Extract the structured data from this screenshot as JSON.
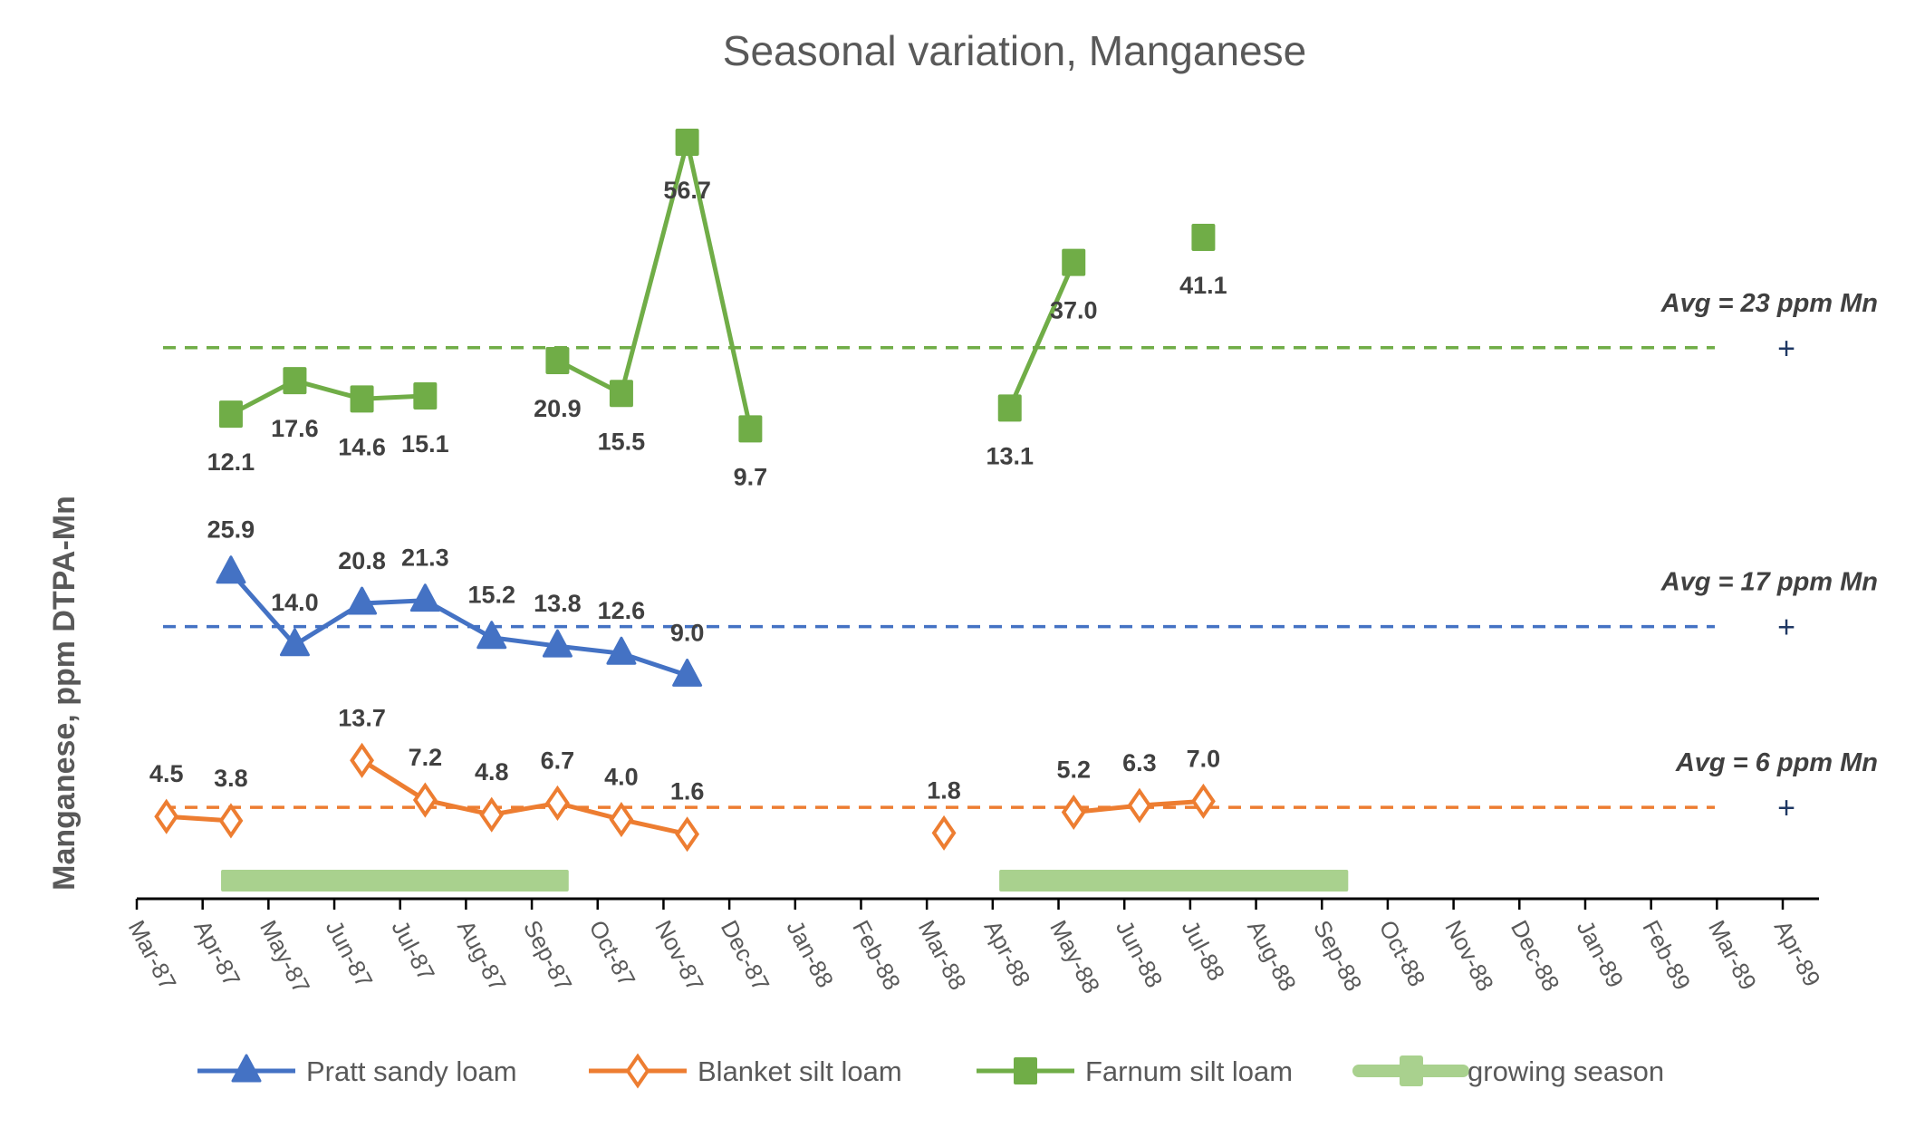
{
  "chart_data": {
    "type": "line",
    "title": "Seasonal variation, Manganese",
    "xlabel": "",
    "ylabel": "Manganese, ppm DTPA-Mn",
    "x_tick_labels": [
      "Mar-87",
      "Apr-87",
      "May-87",
      "Jun-87",
      "Jul-87",
      "Aug-87",
      "Sep-87",
      "Oct-87",
      "Nov-87",
      "Dec-87",
      "Jan-88",
      "Feb-88",
      "Mar-88",
      "Apr-88",
      "May-88",
      "Jun-88",
      "Jul-88",
      "Aug-88",
      "Sep-88",
      "Oct-88",
      "Nov-88",
      "Dec-88",
      "Jan-89",
      "Feb-89",
      "Mar-89",
      "Apr-89"
    ],
    "x_unit": "months since Mar-87",
    "xlim": [
      0,
      25
    ],
    "y_axis_note": "series are vertically offset bands; no y tick labels shown",
    "grid": false,
    "legend_position": "bottom",
    "series": [
      {
        "name": "Pratt sandy loam",
        "color": "#4472c4",
        "marker": "triangle",
        "label_position": "above",
        "average": 17,
        "average_label": "Avg = 17 ppm Mn",
        "segments": [
          [
            {
              "x": 1.43,
              "y": 25.9
            },
            {
              "x": 2.4,
              "y": 14.0
            },
            {
              "x": 3.42,
              "y": 20.8
            },
            {
              "x": 4.38,
              "y": 21.3
            },
            {
              "x": 5.39,
              "y": 15.2
            },
            {
              "x": 6.39,
              "y": 13.8
            },
            {
              "x": 7.36,
              "y": 12.6
            },
            {
              "x": 8.36,
              "y": 9.0
            }
          ]
        ]
      },
      {
        "name": "Blanket silt loam",
        "color": "#ed7d31",
        "marker": "diamond-open",
        "label_position": "above",
        "average": 6,
        "average_label": "Avg = 6 ppm Mn",
        "segments": [
          [
            {
              "x": 0.45,
              "y": 4.5
            },
            {
              "x": 1.43,
              "y": 3.8
            }
          ],
          [
            {
              "x": 3.42,
              "y": 13.7
            },
            {
              "x": 4.38,
              "y": 7.2
            },
            {
              "x": 5.39,
              "y": 4.8
            },
            {
              "x": 6.39,
              "y": 6.7
            },
            {
              "x": 7.36,
              "y": 4.0
            },
            {
              "x": 8.36,
              "y": 1.6
            }
          ],
          [
            {
              "x": 12.26,
              "y": 1.8
            }
          ],
          [
            {
              "x": 14.23,
              "y": 5.2
            },
            {
              "x": 15.23,
              "y": 6.3
            },
            {
              "x": 16.2,
              "y": 7.0
            }
          ]
        ]
      },
      {
        "name": "Farnum silt loam",
        "color": "#70ad47",
        "marker": "square",
        "label_position": "below",
        "average": 23,
        "average_label": "Avg = 23 ppm Mn",
        "segments": [
          [
            {
              "x": 1.43,
              "y": 12.1
            },
            {
              "x": 2.4,
              "y": 17.6
            },
            {
              "x": 3.42,
              "y": 14.6
            },
            {
              "x": 4.38,
              "y": 15.1
            }
          ],
          [
            {
              "x": 6.39,
              "y": 20.9
            },
            {
              "x": 7.36,
              "y": 15.5
            },
            {
              "x": 8.36,
              "y": 56.7
            },
            {
              "x": 9.32,
              "y": 9.7
            }
          ],
          [
            {
              "x": 13.26,
              "y": 13.1
            },
            {
              "x": 14.23,
              "y": 37.0
            }
          ],
          [
            {
              "x": 16.2,
              "y": 41.1
            }
          ]
        ]
      }
    ],
    "growing_season": {
      "name": "growing season",
      "color": "#a9d18e",
      "periods": [
        {
          "start": 1.28,
          "end": 6.56
        },
        {
          "start": 13.1,
          "end": 18.4
        }
      ]
    },
    "average_marker": "+"
  }
}
